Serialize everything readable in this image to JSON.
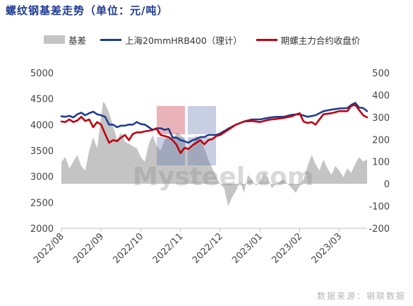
{
  "title": "螺纹钢基差走势（单位：元/吨）",
  "source": "数据来源：钢联数据",
  "watermark": "Mysteel.com",
  "watermark_logo": "我的钢铁",
  "chart_data": {
    "type": "line",
    "x_ticks": [
      "2022/08",
      "2022/09",
      "2022/10",
      "2022/11",
      "2022/12",
      "2023/01",
      "2023/02",
      "2023/03"
    ],
    "x_range": [
      0,
      7.7
    ],
    "y_left": {
      "range": [
        2000,
        5000
      ],
      "ticks": [
        2000,
        2500,
        3000,
        3500,
        4000,
        4500,
        5000
      ]
    },
    "y_right": {
      "range": [
        -200,
        500
      ],
      "ticks": [
        -200,
        -100,
        0,
        100,
        200,
        300,
        400,
        500
      ]
    },
    "grid": false,
    "legend_position": "top",
    "series": [
      {
        "name": "基差",
        "kind": "area",
        "axis": "right",
        "color": "#c4c4c4",
        "x": [
          0,
          0.1,
          0.2,
          0.3,
          0.4,
          0.5,
          0.6,
          0.7,
          0.8,
          0.9,
          1.0,
          1.05,
          1.1,
          1.2,
          1.3,
          1.4,
          1.5,
          1.6,
          1.7,
          1.8,
          1.9,
          2.0,
          2.1,
          2.2,
          2.3,
          2.4,
          2.5,
          2.6,
          2.7,
          2.8,
          2.9,
          3.0,
          3.1,
          3.2,
          3.3,
          3.4,
          3.5,
          3.6,
          3.7,
          3.8,
          3.9,
          4.0,
          4.1,
          4.2,
          4.3,
          4.4,
          4.5,
          4.6,
          4.7,
          4.8,
          4.9,
          5.0,
          5.1,
          5.2,
          5.3,
          5.4,
          5.5,
          5.6,
          5.7,
          5.8,
          5.9,
          6.0,
          6.1,
          6.2,
          6.3,
          6.4,
          6.5,
          6.6,
          6.7,
          6.8,
          6.9,
          7.0,
          7.1,
          7.2,
          7.3,
          7.4,
          7.5,
          7.6,
          7.7
        ],
        "values": [
          100,
          120,
          70,
          100,
          130,
          80,
          60,
          150,
          210,
          160,
          300,
          370,
          360,
          320,
          260,
          200,
          230,
          190,
          180,
          170,
          160,
          120,
          100,
          180,
          220,
          170,
          150,
          200,
          210,
          190,
          230,
          220,
          200,
          150,
          180,
          220,
          200,
          160,
          110,
          70,
          30,
          0,
          -20,
          -100,
          -60,
          -30,
          10,
          -40,
          40,
          20,
          -10,
          10,
          50,
          30,
          -20,
          0,
          10,
          20,
          0,
          -20,
          -40,
          -10,
          20,
          80,
          130,
          90,
          60,
          110,
          70,
          40,
          80,
          60,
          30,
          70,
          50,
          90,
          120,
          100,
          110
        ]
      },
      {
        "name": "上海20mmHRB400（理计）",
        "kind": "line",
        "axis": "left",
        "color": "#1f3f8f",
        "x": [
          0,
          0.1,
          0.2,
          0.3,
          0.4,
          0.5,
          0.6,
          0.7,
          0.8,
          0.9,
          1.0,
          1.1,
          1.2,
          1.3,
          1.4,
          1.5,
          1.6,
          1.7,
          1.8,
          1.9,
          2.0,
          2.1,
          2.2,
          2.3,
          2.4,
          2.5,
          2.6,
          2.7,
          2.8,
          2.9,
          3.0,
          3.1,
          3.2,
          3.3,
          3.4,
          3.5,
          3.6,
          3.7,
          3.8,
          3.9,
          4.0,
          4.2,
          4.4,
          4.6,
          4.8,
          5.0,
          5.2,
          5.4,
          5.6,
          5.8,
          6.0,
          6.2,
          6.4,
          6.6,
          6.8,
          7.0,
          7.2,
          7.3,
          7.4,
          7.5,
          7.6,
          7.7
        ],
        "values": [
          4160,
          4150,
          4170,
          4140,
          4200,
          4230,
          4180,
          4220,
          4250,
          4200,
          4180,
          4150,
          4000,
          4000,
          3950,
          3980,
          3980,
          4000,
          4000,
          4050,
          4010,
          4000,
          3950,
          3900,
          3930,
          3930,
          3900,
          3920,
          3750,
          3750,
          3700,
          3680,
          3650,
          3700,
          3720,
          3760,
          3760,
          3800,
          3800,
          3800,
          3830,
          3920,
          4000,
          4060,
          4100,
          4100,
          4130,
          4150,
          4150,
          4190,
          4200,
          4150,
          4180,
          4260,
          4290,
          4310,
          4320,
          4380,
          4420,
          4330,
          4320,
          4260
        ]
      },
      {
        "name": "期螺主力合约收盘价",
        "kind": "line",
        "axis": "left",
        "color": "#c00010",
        "x": [
          0,
          0.1,
          0.2,
          0.3,
          0.4,
          0.5,
          0.6,
          0.7,
          0.8,
          0.9,
          1.0,
          1.1,
          1.2,
          1.3,
          1.4,
          1.5,
          1.6,
          1.7,
          1.8,
          1.9,
          2.0,
          2.1,
          2.2,
          2.3,
          2.4,
          2.5,
          2.6,
          2.7,
          2.8,
          2.9,
          3.0,
          3.1,
          3.2,
          3.3,
          3.4,
          3.5,
          3.6,
          3.7,
          3.8,
          3.9,
          4.0,
          4.2,
          4.4,
          4.6,
          4.8,
          5.0,
          5.2,
          5.4,
          5.6,
          5.8,
          6.0,
          6.1,
          6.2,
          6.3,
          6.4,
          6.6,
          6.8,
          7.0,
          7.2,
          7.3,
          7.4,
          7.5,
          7.6,
          7.7
        ],
        "values": [
          4060,
          4050,
          4100,
          4050,
          4080,
          4150,
          4070,
          4100,
          3950,
          4050,
          4000,
          3820,
          3650,
          3700,
          3680,
          3750,
          3800,
          3700,
          3820,
          3850,
          3850,
          3870,
          3880,
          3900,
          3920,
          3800,
          3780,
          3760,
          3700,
          3610,
          3450,
          3550,
          3530,
          3600,
          3650,
          3700,
          3620,
          3700,
          3720,
          3780,
          3800,
          3900,
          4000,
          4060,
          4070,
          4050,
          4090,
          4110,
          4130,
          4160,
          4220,
          4060,
          4030,
          4050,
          4000,
          4200,
          4220,
          4260,
          4260,
          4360,
          4380,
          4280,
          4180,
          4140
        ]
      }
    ]
  }
}
